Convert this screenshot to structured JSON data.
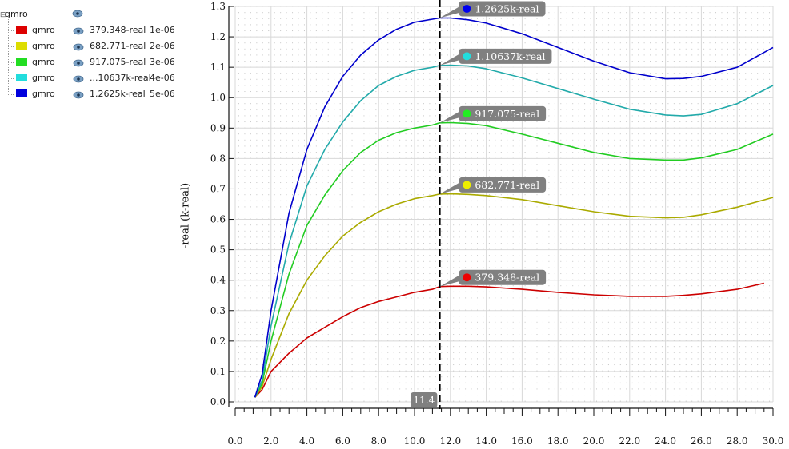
{
  "legend": {
    "root_label": "gmro",
    "items": [
      {
        "name": "gmro",
        "value": "379.348-real",
        "param": "1e-06",
        "color": "#dd0000"
      },
      {
        "name": "gmro",
        "value": "682.771-real",
        "param": "2e-06",
        "color": "#dddd00"
      },
      {
        "name": "gmro",
        "value": "917.075-real",
        "param": "3e-06",
        "color": "#22dd22"
      },
      {
        "name": "gmro",
        "value": "...10637k-real",
        "param": "4e-06",
        "color": "#22dddd"
      },
      {
        "name": "gmro",
        "value": "1.2625k-real",
        "param": "5e-06",
        "color": "#0000dd"
      }
    ]
  },
  "chart_data": {
    "type": "line",
    "title": "",
    "xlabel": "",
    "ylabel": "-real (k-real)",
    "xlim": [
      0,
      30
    ],
    "ylim": [
      0,
      1.3
    ],
    "grid": true,
    "xticks": [
      "0.0",
      "2.0",
      "4.0",
      "6.0",
      "8.0",
      "10.0",
      "12.0",
      "14.0",
      "16.0",
      "18.0",
      "20.0",
      "22.0",
      "24.0",
      "26.0",
      "28.0",
      "30.0"
    ],
    "yticks": [
      "0.0",
      "0.1",
      "0.2",
      "0.3",
      "0.4",
      "0.5",
      "0.6",
      "0.7",
      "0.8",
      "0.9",
      "1.0",
      "1.1",
      "1.2",
      "1.3"
    ],
    "cursor": {
      "x": 11.4,
      "label": "11.4"
    },
    "series": [
      {
        "name": "379.348-real",
        "color": "#cc0000",
        "marker_label": "379.348-real",
        "marker_color": "#ee0000",
        "x": [
          1.1,
          1.5,
          2,
          3,
          4,
          5,
          6,
          7,
          8,
          9,
          10,
          11,
          11.4,
          12,
          13,
          14,
          16,
          18,
          20,
          22,
          24,
          25,
          26,
          28,
          29.5
        ],
        "y": [
          0.015,
          0.04,
          0.1,
          0.16,
          0.21,
          0.245,
          0.28,
          0.31,
          0.33,
          0.345,
          0.36,
          0.37,
          0.379,
          0.38,
          0.38,
          0.378,
          0.37,
          0.36,
          0.352,
          0.347,
          0.347,
          0.35,
          0.355,
          0.37,
          0.39
        ]
      },
      {
        "name": "682.771-real",
        "color": "#aaaa00",
        "marker_label": "682.771-real",
        "marker_color": "#eeee00",
        "x": [
          1.1,
          1.5,
          2,
          3,
          4,
          5,
          6,
          7,
          8,
          9,
          10,
          11,
          11.4,
          12,
          13,
          14,
          16,
          18,
          20,
          22,
          24,
          25,
          26,
          28,
          30
        ],
        "y": [
          0.015,
          0.05,
          0.14,
          0.29,
          0.4,
          0.48,
          0.545,
          0.59,
          0.625,
          0.65,
          0.668,
          0.678,
          0.683,
          0.684,
          0.682,
          0.678,
          0.665,
          0.645,
          0.625,
          0.61,
          0.605,
          0.607,
          0.615,
          0.64,
          0.672
        ]
      },
      {
        "name": "917.075-real",
        "color": "#22cc22",
        "marker_label": "917.075-real",
        "marker_color": "#22ee22",
        "x": [
          1.1,
          1.5,
          2,
          3,
          4,
          5,
          6,
          7,
          8,
          9,
          10,
          11,
          11.4,
          12,
          13,
          14,
          16,
          18,
          20,
          22,
          24,
          25,
          26,
          28,
          30
        ],
        "y": [
          0.015,
          0.06,
          0.2,
          0.42,
          0.58,
          0.68,
          0.76,
          0.82,
          0.86,
          0.885,
          0.9,
          0.91,
          0.917,
          0.918,
          0.915,
          0.908,
          0.88,
          0.85,
          0.82,
          0.8,
          0.795,
          0.795,
          0.802,
          0.83,
          0.88
        ]
      },
      {
        "name": "1.10637k-real",
        "color": "#22aaaa",
        "marker_label": "1.10637k-real",
        "marker_color": "#22dddd",
        "x": [
          1.1,
          1.5,
          2,
          3,
          4,
          5,
          6,
          7,
          8,
          9,
          10,
          11,
          11.4,
          12,
          13,
          14,
          16,
          18,
          20,
          22,
          24,
          25,
          26,
          28,
          30
        ],
        "y": [
          0.015,
          0.07,
          0.25,
          0.52,
          0.71,
          0.83,
          0.92,
          0.99,
          1.04,
          1.07,
          1.09,
          1.1,
          1.106,
          1.107,
          1.104,
          1.095,
          1.065,
          1.03,
          0.995,
          0.962,
          0.943,
          0.94,
          0.945,
          0.98,
          1.04
        ]
      },
      {
        "name": "1.2625k-real",
        "color": "#0000cc",
        "marker_label": "1.2625k-real",
        "marker_color": "#0000ee",
        "x": [
          1.1,
          1.5,
          2,
          3,
          4,
          5,
          6,
          7,
          8,
          9,
          10,
          11,
          11.4,
          12,
          13,
          14,
          16,
          18,
          20,
          22,
          24,
          25,
          26,
          28,
          30
        ],
        "y": [
          0.015,
          0.09,
          0.3,
          0.62,
          0.83,
          0.97,
          1.07,
          1.14,
          1.19,
          1.225,
          1.248,
          1.258,
          1.262,
          1.262,
          1.256,
          1.245,
          1.21,
          1.165,
          1.12,
          1.082,
          1.062,
          1.063,
          1.07,
          1.1,
          1.165
        ]
      }
    ]
  }
}
